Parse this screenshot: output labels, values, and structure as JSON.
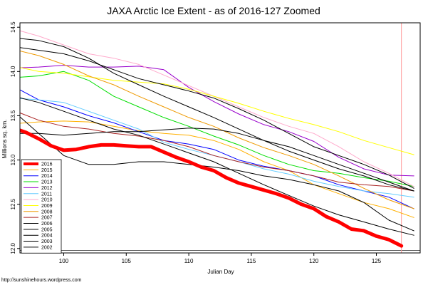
{
  "chart_data": {
    "type": "line",
    "title": "JAXA Arctic Ice Extent - as of 2016-127 Zoomed",
    "xlabel": "Julian Day",
    "ylabel": "Millions sq. km.",
    "source_note": "http://sunshinehours.wordpress.com",
    "xlim": [
      96.5,
      128.5
    ],
    "ylim": [
      11.95,
      14.55
    ],
    "x_ticks": [
      100,
      105,
      110,
      115,
      120,
      125
    ],
    "x_tick_labels": [
      "100",
      "105",
      "110",
      "115",
      "120",
      "125"
    ],
    "y_ticks": [
      12.0,
      12.5,
      13.0,
      13.5,
      14.0,
      14.5
    ],
    "y_tick_labels": [
      "12.0",
      "12.5",
      "13.0",
      "13.5",
      "14.0",
      "14.5"
    ],
    "marker_line_x": 127,
    "marker_line_color": "#ff9999",
    "horizontal_line_y": 11.98,
    "legend_position": "bottom-left",
    "series": [
      {
        "name": "2016",
        "color": "#ff0000",
        "width": 5,
        "x": [
          96,
          97,
          98,
          99,
          100,
          101,
          102,
          103,
          104,
          105,
          106,
          107,
          108,
          109,
          110,
          111,
          112,
          113,
          114,
          115,
          116,
          117,
          118,
          119,
          120,
          121,
          122,
          123,
          124,
          125,
          126,
          127
        ],
        "y": [
          13.36,
          13.31,
          13.24,
          13.16,
          13.11,
          13.12,
          13.15,
          13.17,
          13.17,
          13.16,
          13.15,
          13.15,
          13.09,
          13.03,
          12.98,
          12.92,
          12.88,
          12.8,
          12.74,
          12.7,
          12.66,
          12.62,
          12.57,
          12.5,
          12.45,
          12.36,
          12.3,
          12.22,
          12.2,
          12.14,
          12.1,
          12.03
        ]
      },
      {
        "name": "2015",
        "color": "#ffb000",
        "width": 1,
        "x": [
          96,
          98,
          100,
          102,
          104,
          106,
          108,
          110,
          112,
          114,
          116,
          118,
          120,
          122,
          124,
          126,
          128
        ],
        "y": [
          13.41,
          13.43,
          13.44,
          13.43,
          13.38,
          13.33,
          13.3,
          13.28,
          13.22,
          13.12,
          12.98,
          12.88,
          12.72,
          12.62,
          12.52,
          12.45,
          12.35
        ]
      },
      {
        "name": "2014",
        "color": "#0000ff",
        "width": 1,
        "x": [
          96,
          98,
          100,
          102,
          104,
          106,
          108,
          110,
          112,
          114,
          116,
          118,
          120,
          122,
          124,
          126,
          128
        ],
        "y": [
          13.83,
          13.68,
          13.6,
          13.5,
          13.42,
          13.32,
          13.22,
          13.18,
          13.12,
          13.0,
          12.93,
          12.88,
          12.82,
          12.72,
          12.65,
          12.58,
          12.45
        ]
      },
      {
        "name": "2013",
        "color": "#00dd00",
        "width": 1,
        "x": [
          96,
          98,
          100,
          102,
          104,
          106,
          108,
          110,
          112,
          114,
          116,
          118,
          120,
          122,
          124,
          126,
          128
        ],
        "y": [
          13.93,
          13.95,
          14.0,
          13.9,
          13.72,
          13.6,
          13.48,
          13.38,
          13.27,
          13.17,
          13.05,
          12.95,
          12.88,
          12.85,
          12.8,
          12.76,
          12.7
        ]
      },
      {
        "name": "2012",
        "color": "#9900cc",
        "width": 1,
        "x": [
          96,
          98,
          100,
          102,
          104,
          106,
          108,
          110,
          112,
          114,
          116,
          118,
          120,
          122,
          124,
          126,
          128
        ],
        "y": [
          14.04,
          14.05,
          14.07,
          14.05,
          14.05,
          14.06,
          14.02,
          13.82,
          13.66,
          13.52,
          13.4,
          13.32,
          13.21,
          13.03,
          12.9,
          12.83,
          12.82
        ]
      },
      {
        "name": "2011",
        "color": "#66ccff",
        "width": 1,
        "x": [
          96,
          98,
          100,
          102,
          104,
          106,
          108,
          110,
          112,
          114,
          116,
          118,
          120,
          122,
          124,
          126,
          128
        ],
        "y": [
          13.7,
          13.68,
          13.65,
          13.55,
          13.45,
          13.35,
          13.2,
          13.12,
          13.05,
          12.98,
          12.9,
          12.84,
          12.76,
          12.7,
          12.65,
          12.62,
          12.58
        ]
      },
      {
        "name": "2010",
        "color": "#ffaacc",
        "width": 1,
        "x": [
          96,
          98,
          100,
          102,
          104,
          106,
          108,
          110,
          112,
          114,
          116,
          118,
          120,
          122,
          124,
          126,
          128
        ],
        "y": [
          14.48,
          14.4,
          14.3,
          14.2,
          14.15,
          14.08,
          13.96,
          13.84,
          13.72,
          13.6,
          13.48,
          13.38,
          13.3,
          13.15,
          12.98,
          12.85,
          12.7
        ]
      },
      {
        "name": "2009",
        "color": "#ffff00",
        "width": 1,
        "x": [
          96,
          98,
          100,
          102,
          104,
          106,
          108,
          110,
          112,
          114,
          116,
          118,
          120,
          122,
          124,
          126,
          128
        ],
        "y": [
          14.06,
          14.0,
          13.98,
          13.94,
          13.9,
          13.88,
          13.86,
          13.8,
          13.72,
          13.64,
          13.55,
          13.47,
          13.4,
          13.32,
          13.22,
          13.14,
          13.06
        ]
      },
      {
        "name": "2008",
        "color": "#ee9900",
        "width": 1,
        "x": [
          96,
          98,
          100,
          102,
          104,
          106,
          108,
          110,
          112,
          114,
          116,
          118,
          120,
          122,
          124,
          126,
          128
        ],
        "y": [
          14.25,
          14.18,
          14.08,
          13.95,
          13.85,
          13.72,
          13.6,
          13.48,
          13.38,
          13.25,
          13.14,
          13.05,
          12.95,
          12.82,
          12.68,
          12.55,
          12.45
        ]
      },
      {
        "name": "2007",
        "color": "#aa2222",
        "width": 1,
        "x": [
          96,
          98,
          100,
          102,
          104,
          106,
          108,
          110,
          112,
          114,
          116,
          118,
          120,
          122,
          124,
          126,
          128
        ],
        "y": [
          13.56,
          13.45,
          13.38,
          13.35,
          13.3,
          13.27,
          13.22,
          13.15,
          13.05,
          12.98,
          12.92,
          12.88,
          12.82,
          12.75,
          12.72,
          12.7,
          12.65
        ]
      },
      {
        "name": "2006",
        "color": "#000000",
        "width": 1,
        "x": [
          96,
          98,
          100,
          102,
          104,
          106,
          108,
          110,
          112,
          114,
          116,
          118,
          120,
          122,
          124,
          126,
          128
        ],
        "y": [
          13.72,
          13.65,
          13.55,
          13.45,
          13.35,
          13.28,
          13.18,
          13.08,
          12.98,
          12.85,
          12.72,
          12.6,
          12.48,
          12.38,
          12.3,
          12.22,
          12.15
        ]
      },
      {
        "name": "2005",
        "color": "#000000",
        "width": 1,
        "x": [
          96,
          98,
          100,
          102,
          104,
          106,
          108,
          110,
          112,
          114,
          116,
          118,
          120,
          122,
          124,
          126,
          128
        ],
        "y": [
          14.38,
          14.35,
          14.28,
          14.15,
          13.98,
          13.85,
          13.72,
          13.6,
          13.48,
          13.35,
          13.22,
          13.1,
          13.0,
          12.9,
          12.82,
          12.72,
          12.65
        ]
      },
      {
        "name": "2004",
        "color": "#000000",
        "width": 1,
        "x": [
          96,
          98,
          100,
          102,
          104,
          106,
          108,
          110,
          112,
          114,
          116,
          118,
          120,
          122,
          124,
          126,
          128
        ],
        "y": [
          14.28,
          14.24,
          14.2,
          14.12,
          14.02,
          13.92,
          13.85,
          13.78,
          13.7,
          13.58,
          13.45,
          13.3,
          13.15,
          13.05,
          12.95,
          12.83,
          12.68
        ]
      },
      {
        "name": "2003",
        "color": "#000000",
        "width": 1,
        "x": [
          96,
          98,
          100,
          102,
          104,
          106,
          108,
          110,
          112,
          114,
          116,
          118,
          120,
          122,
          124,
          126,
          128
        ],
        "y": [
          13.55,
          13.3,
          13.05,
          12.95,
          12.95,
          12.98,
          12.98,
          12.95,
          12.92,
          12.88,
          12.82,
          12.78,
          12.72,
          12.65,
          12.52,
          12.32,
          12.2
        ]
      },
      {
        "name": "2002",
        "color": "#000000",
        "width": 1,
        "x": [
          96,
          98,
          100,
          102,
          104,
          106,
          108,
          110,
          112,
          114,
          116,
          118,
          120,
          122,
          124,
          126,
          128
        ],
        "y": [
          13.3,
          13.3,
          13.28,
          13.3,
          13.32,
          13.32,
          13.34,
          13.36,
          13.35,
          13.3,
          13.22,
          13.15,
          13.05,
          12.95,
          12.85,
          12.75,
          12.65
        ]
      }
    ]
  }
}
